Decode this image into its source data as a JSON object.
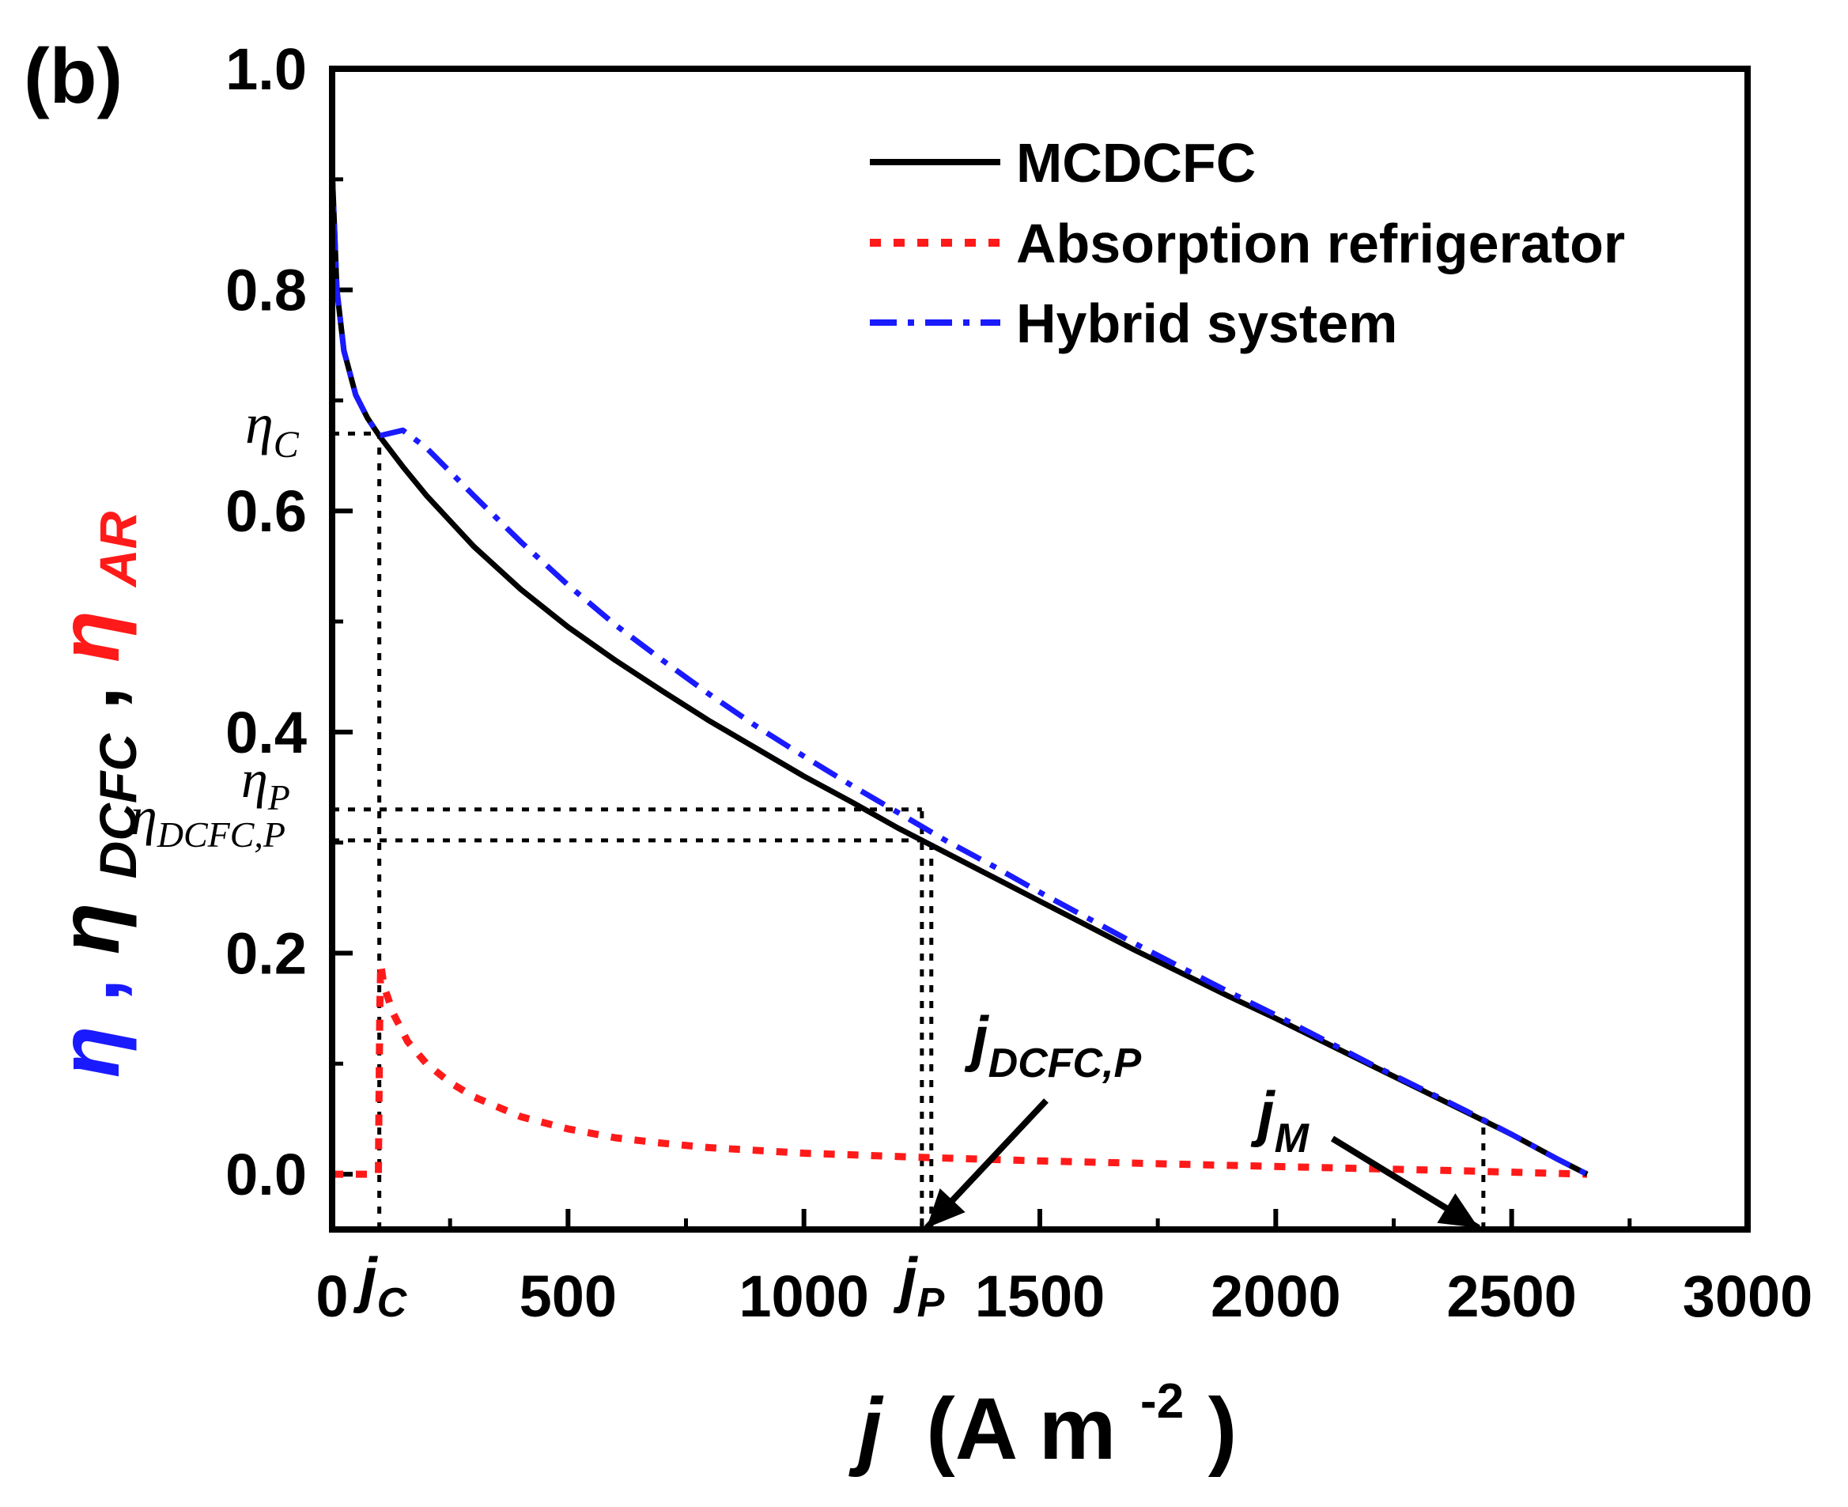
{
  "chart_data": {
    "type": "line",
    "panel_label": "(b)",
    "title": "",
    "xlabel": {
      "var": "j",
      "unit": "(A m",
      "exp": "-2",
      "close": ")"
    },
    "ylabel": [
      {
        "sym": "η",
        "sub": "",
        "color": "#1a1aff",
        "sep": ", "
      },
      {
        "sym": "η",
        "sub": "DCFC",
        "color": "#000000",
        "sep": ", "
      },
      {
        "sym": "η",
        "sub": "AR",
        "color": "#ff1a1a",
        "sep": ""
      }
    ],
    "xlim": [
      0,
      3000
    ],
    "ylim": [
      -0.05,
      1.0
    ],
    "x_ticks": [
      {
        "value": 0,
        "label": "0"
      },
      {
        "value": 500,
        "label": "500"
      },
      {
        "value": 1000,
        "label": "1000"
      },
      {
        "value": 1500,
        "label": "1500"
      },
      {
        "value": 2000,
        "label": "2000"
      },
      {
        "value": 2500,
        "label": "2500"
      },
      {
        "value": 3000,
        "label": "3000"
      }
    ],
    "y_ticks": [
      {
        "value": 0.0,
        "label": "0.0"
      },
      {
        "value": 0.2,
        "label": "0.2"
      },
      {
        "value": 0.4,
        "label": "0.4"
      },
      {
        "value": 0.6,
        "label": "0.6"
      },
      {
        "value": 0.8,
        "label": "0.8"
      },
      {
        "value": 1.0,
        "label": "1.0"
      }
    ],
    "x_minor_step": 250,
    "y_minor_step": 0.1,
    "series": [
      {
        "name": "MCDCFC",
        "color": "#000000",
        "dash": "solid",
        "x": [
          0,
          10,
          25,
          50,
          75,
          100,
          150,
          200,
          300,
          400,
          500,
          600,
          700,
          800,
          900,
          1000,
          1100,
          1200,
          1300,
          1400,
          1500,
          1600,
          1700,
          1800,
          1900,
          2000,
          2100,
          2200,
          2300,
          2400,
          2500,
          2600,
          2660
        ],
        "y": [
          0.91,
          0.8,
          0.745,
          0.705,
          0.684,
          0.668,
          0.64,
          0.614,
          0.568,
          0.529,
          0.495,
          0.465,
          0.437,
          0.41,
          0.385,
          0.36,
          0.337,
          0.313,
          0.291,
          0.269,
          0.247,
          0.225,
          0.203,
          0.182,
          0.161,
          0.141,
          0.12,
          0.099,
          0.078,
          0.057,
          0.036,
          0.013,
          0.0
        ]
      },
      {
        "name": "Absorption refrigerator",
        "color": "#ff1a1a",
        "dash": "dot",
        "x": [
          0,
          80,
          98,
          100,
          101,
          103,
          110,
          130,
          160,
          200,
          250,
          300,
          400,
          500,
          600,
          700,
          800,
          1000,
          1200,
          1266,
          1500,
          1800,
          2100,
          2400,
          2660
        ],
        "y": [
          0.0,
          0.0,
          0.0,
          0.1,
          0.15,
          0.19,
          0.17,
          0.145,
          0.12,
          0.1,
          0.083,
          0.07,
          0.052,
          0.041,
          0.033,
          0.028,
          0.024,
          0.019,
          0.016,
          0.015,
          0.012,
          0.009,
          0.006,
          0.003,
          0.0
        ]
      },
      {
        "name": "Hybrid system",
        "color": "#1a1aff",
        "dash": "dashdot",
        "x": [
          0,
          10,
          25,
          50,
          75,
          100,
          150,
          200,
          300,
          400,
          500,
          600,
          700,
          800,
          900,
          1000,
          1100,
          1200,
          1300,
          1400,
          1500,
          1600,
          1700,
          1800,
          1900,
          2000,
          2100,
          2200,
          2300,
          2400,
          2500,
          2600,
          2660
        ],
        "y": [
          0.91,
          0.8,
          0.745,
          0.705,
          0.684,
          0.668,
          0.673,
          0.657,
          0.614,
          0.572,
          0.533,
          0.497,
          0.465,
          0.434,
          0.405,
          0.378,
          0.352,
          0.327,
          0.302,
          0.279,
          0.255,
          0.232,
          0.209,
          0.187,
          0.165,
          0.144,
          0.122,
          0.1,
          0.079,
          0.058,
          0.036,
          0.013,
          0.0
        ]
      }
    ],
    "legend": {
      "position": "top-right",
      "entries": [
        "MCDCFC",
        "Absorption refrigerator",
        "Hybrid system"
      ]
    },
    "reference_lines": [
      {
        "axis": "x",
        "value": 100,
        "from": -0.05,
        "to": 0.67
      },
      {
        "axis": "y",
        "value": 0.67,
        "from": 0,
        "to": 100
      },
      {
        "axis": "x",
        "value": 1250,
        "from": -0.05,
        "to": 0.33
      },
      {
        "axis": "y",
        "value": 0.33,
        "from": 0,
        "to": 1250
      },
      {
        "axis": "x",
        "value": 1270,
        "from": -0.05,
        "to": 0.302
      },
      {
        "axis": "y",
        "value": 0.302,
        "from": 0,
        "to": 1270
      },
      {
        "axis": "x",
        "value": 2440,
        "from": -0.05,
        "to": 0.05
      }
    ],
    "annotations": {
      "eta_c": {
        "sym": "η",
        "sub": "C",
        "value": 0.67
      },
      "eta_p": {
        "sym": "η",
        "sub": "P",
        "value": 0.33
      },
      "eta_dcfc_p": {
        "sym": "η",
        "sub": "DCFC,P",
        "value": 0.302
      },
      "j_c": {
        "sym": "j",
        "sub": "C",
        "value": 100
      },
      "j_p": {
        "sym": "j",
        "sub": "P",
        "value": 1250
      },
      "j_dcfc_p": {
        "sym": "j",
        "sub": "DCFC,P",
        "value": 1270
      },
      "j_m": {
        "sym": "j",
        "sub": "M",
        "value": 2440
      }
    }
  }
}
